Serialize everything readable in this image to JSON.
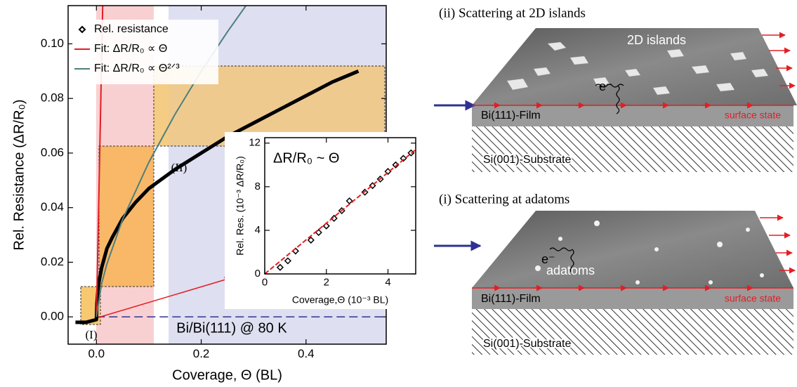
{
  "chart_data": [
    {
      "type": "line",
      "x_label": "Coverage, Θ (BL)",
      "y_label": "Rel. Resistance (ΔR/R₀)",
      "xlim": [
        -0.054,
        0.553
      ],
      "ylim": [
        -0.01,
        0.114
      ],
      "xticks": [
        {
          "value": 0,
          "label": "0.0"
        },
        {
          "value": 0.2,
          "label": "0.2"
        },
        {
          "value": 0.4,
          "label": "0.4"
        }
      ],
      "yticks": [
        {
          "value": 0,
          "label": "0.00"
        },
        {
          "value": 0.02,
          "label": "0.02"
        },
        {
          "value": 0.04,
          "label": "0.04"
        },
        {
          "value": 0.06,
          "label": "0.06"
        },
        {
          "value": 0.08,
          "label": "0.08"
        },
        {
          "value": 0.1,
          "label": "0.10"
        }
      ],
      "reference_line": {
        "value": 0,
        "color": "#2e3192"
      },
      "legend": "upper left",
      "series": [
        {
          "name": "Rel. resistance",
          "color": "#000000",
          "marker": "diamond",
          "x": [
            -0.04,
            -0.02,
            0,
            0.001,
            0.003,
            0.005,
            0.01,
            0.02,
            0.03,
            0.05,
            0.075,
            0.1,
            0.15,
            0.2,
            0.25,
            0.3,
            0.35,
            0.4,
            0.45,
            0.5
          ],
          "values": [
            -0.002,
            -0.002,
            -0.001,
            0.005,
            0.01,
            0.013,
            0.018,
            0.025,
            0.029,
            0.036,
            0.042,
            0.047,
            0.054,
            0.06,
            0.066,
            0.071,
            0.076,
            0.081,
            0.086,
            0.09
          ]
        },
        {
          "name": "Fit: ΔR/R₀ ∝ Θ",
          "color": "#e31e24",
          "x": [
            0,
            0.012
          ],
          "values": [
            0,
            0.114
          ]
        },
        {
          "name": "Fit: ΔR/R₀ ∝ Θ²ᐟ³",
          "color": "#4d7f7c",
          "x": [
            0,
            0.01,
            0.02,
            0.05,
            0.1,
            0.15,
            0.2,
            0.25,
            0.285
          ],
          "values": [
            0,
            0.0122,
            0.0194,
            0.0357,
            0.0566,
            0.0742,
            0.09,
            0.1044,
            0.1139
          ]
        }
      ],
      "annotations": [
        "(I)",
        "(II)",
        "Bi/Bi(111) @ 80 K"
      ]
    },
    {
      "type": "scatter",
      "title": "ΔR/R₀ ~ Θ",
      "x_label": "Coverage,Θ (10⁻³ BL)",
      "y_label": "Rel. Res. (10⁻³ ΔR/R₀)",
      "xlim": [
        0,
        4.9
      ],
      "ylim": [
        0,
        12.5
      ],
      "xticks": [
        0,
        2,
        4
      ],
      "yticks": [
        0,
        4,
        8,
        12
      ],
      "series": [
        {
          "color": "#000000",
          "marker": "diamond",
          "x": [
            0.5,
            0.75,
            1.0,
            1.5,
            1.75,
            2.0,
            2.25,
            2.5,
            2.75,
            3.25,
            3.5,
            3.75,
            4.0,
            4.25,
            4.5,
            4.75
          ],
          "values": [
            0.6,
            1.2,
            2.1,
            3.1,
            3.8,
            4.4,
            5.1,
            5.8,
            6.7,
            7.5,
            8.1,
            8.7,
            9.4,
            10.0,
            10.6,
            11.1
          ]
        },
        {
          "color": "#e31e24",
          "x": [
            0,
            4.9
          ],
          "values": [
            0,
            11.4
          ]
        }
      ]
    }
  ],
  "panels": [
    {
      "title": "(ii) Scattering at 2D islands",
      "feature": "2D islands",
      "electron": "e⁻",
      "film": "Bi(111)-Film",
      "state": "surface state",
      "substrate": "Si(001)-Substrate"
    },
    {
      "title": "(i) Scattering at adatoms",
      "feature": "adatoms",
      "electron": "e⁻",
      "film": "Bi(111)-Film",
      "state": "surface state",
      "substrate": "Si(001)-Substrate"
    }
  ]
}
